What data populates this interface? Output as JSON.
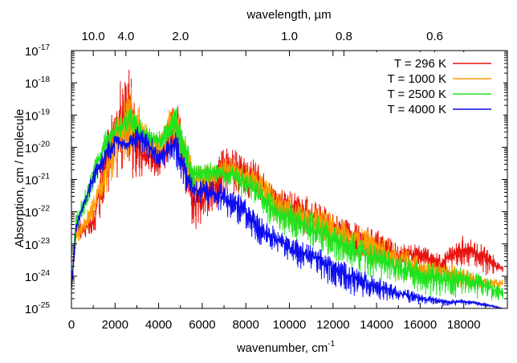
{
  "chart_data": {
    "type": "line",
    "top_axis_label": "wavelength, µm",
    "xlabel": "wavenumber, cm",
    "xlabel_sup": "-1",
    "ylabel": "Absorption, cm / molecule",
    "xlim": [
      0,
      20000
    ],
    "y_scale": "log",
    "ylim": [
      1e-25,
      1e-17
    ],
    "x_ticks": [
      0,
      2000,
      4000,
      6000,
      8000,
      10000,
      12000,
      14000,
      16000,
      18000
    ],
    "y_ticks": [
      {
        "base": "10",
        "exp": "-25",
        "value": 1e-25
      },
      {
        "base": "10",
        "exp": "-24",
        "value": 1e-24
      },
      {
        "base": "10",
        "exp": "-23",
        "value": 1e-23
      },
      {
        "base": "10",
        "exp": "-22",
        "value": 1e-22
      },
      {
        "base": "10",
        "exp": "-21",
        "value": 1e-21
      },
      {
        "base": "10",
        "exp": "-20",
        "value": 1e-20
      },
      {
        "base": "10",
        "exp": "-19",
        "value": 1e-19
      },
      {
        "base": "10",
        "exp": "-18",
        "value": 1e-18
      },
      {
        "base": "10",
        "exp": "-17",
        "value": 1e-17
      }
    ],
    "top_ticks": [
      {
        "label": "10.0",
        "wavelength_um": 10.0
      },
      {
        "label": "4.0",
        "wavelength_um": 4.0
      },
      {
        "label": "2.0",
        "wavelength_um": 2.0
      },
      {
        "label": "1.0",
        "wavelength_um": 1.0
      },
      {
        "label": "0.8",
        "wavelength_um": 0.8
      },
      {
        "label": "0.6",
        "wavelength_um": 0.6
      }
    ],
    "legend_position": "top-right",
    "grid": false,
    "series": [
      {
        "name": "T = 296 K",
        "color": "#e8130f",
        "envelope": {
          "x": [
            0,
            200,
            500,
            1000,
            1500,
            2000,
            2400,
            2600,
            2800,
            3000,
            3500,
            4000,
            4500,
            4800,
            5200,
            5600,
            6000,
            6500,
            7000,
            7500,
            8000,
            8500,
            9000,
            9500,
            10000,
            11000,
            12000,
            13000,
            14000,
            15000,
            16000,
            17000,
            18000,
            19000,
            19800
          ],
          "upper": [
            1e-24,
            1e-22,
            5e-23,
            1e-22,
            1e-20,
            5e-19,
            2e-18,
            5e-18,
            1e-18,
            1e-19,
            1e-20,
            1e-20,
            1e-19,
            5e-19,
            2e-20,
            1e-21,
            1e-21,
            5e-21,
            1e-20,
            1e-20,
            5e-21,
            5e-21,
            1e-21,
            5e-22,
            5e-22,
            3e-22,
            1e-22,
            5e-23,
            3e-23,
            1e-23,
            1e-23,
            5e-24,
            2e-23,
            1e-23,
            2e-24
          ],
          "lower": [
            1e-25,
            3e-24,
            1e-23,
            5e-24,
            5e-23,
            1e-22,
            5e-23,
            1e-22,
            5e-23,
            5e-23,
            1e-21,
            5e-22,
            1e-21,
            5e-22,
            1e-22,
            5e-24,
            1e-23,
            1e-23,
            1e-22,
            1e-22,
            1e-22,
            5e-23,
            1e-22,
            3e-23,
            1e-23,
            5e-24,
            5e-24,
            2e-24,
            1e-24,
            1e-24,
            1e-24,
            5e-25,
            1e-24,
            5e-25,
            1e-24
          ]
        }
      },
      {
        "name": "T = 1000 K",
        "color": "#ff9c00",
        "envelope": {
          "x": [
            0,
            200,
            500,
            1000,
            1500,
            2000,
            2400,
            2600,
            2800,
            3000,
            3500,
            4000,
            4500,
            4800,
            5200,
            5600,
            6000,
            6500,
            7000,
            7500,
            8000,
            8500,
            9000,
            9500,
            10000,
            11000,
            12000,
            13000,
            14000,
            15000,
            16000,
            17000,
            18000,
            19000,
            19800
          ],
          "upper": [
            1e-24,
            3e-23,
            5e-23,
            3e-22,
            3e-21,
            1e-19,
            3e-19,
            1e-18,
            1e-18,
            3e-19,
            5e-20,
            2e-20,
            2e-19,
            3e-19,
            3e-20,
            3e-21,
            3e-21,
            3e-21,
            5e-21,
            5e-21,
            3e-21,
            2e-21,
            1e-21,
            5e-22,
            3e-22,
            2e-22,
            1e-22,
            5e-23,
            3e-23,
            1e-23,
            5e-24,
            3e-24,
            2e-24,
            1e-24,
            8e-25
          ],
          "lower": [
            1e-25,
            5e-24,
            1e-23,
            3e-23,
            1e-22,
            3e-22,
            2e-22,
            3e-22,
            3e-22,
            1e-21,
            3e-21,
            2e-21,
            3e-21,
            2e-21,
            3e-22,
            5e-23,
            1e-22,
            3e-22,
            5e-22,
            3e-22,
            2e-22,
            1e-22,
            5e-23,
            1e-23,
            1e-23,
            5e-24,
            2e-24,
            1e-24,
            5e-25,
            3e-25,
            2e-25,
            3e-25,
            2e-25,
            3e-25,
            3e-25
          ]
        }
      },
      {
        "name": "T = 2500 K",
        "color": "#1ee31e",
        "envelope": {
          "x": [
            0,
            200,
            500,
            1000,
            1500,
            2000,
            2400,
            2600,
            2800,
            3000,
            3500,
            4000,
            4500,
            4800,
            5200,
            5600,
            6000,
            6500,
            7000,
            7500,
            8000,
            8500,
            9000,
            9500,
            10000,
            11000,
            12000,
            13000,
            14000,
            15000,
            16000,
            17000,
            18000,
            19000,
            19800
          ],
          "upper": [
            1e-24,
            1e-22,
            3e-22,
            3e-21,
            3e-20,
            8e-20,
            1e-19,
            2e-19,
            2e-19,
            1e-19,
            5e-20,
            3e-20,
            1e-19,
            2e-19,
            3e-20,
            3e-21,
            3e-21,
            5e-21,
            3e-21,
            3e-21,
            2e-21,
            1e-21,
            5e-22,
            2e-22,
            2e-22,
            1e-22,
            5e-23,
            2e-23,
            1e-23,
            5e-24,
            3e-24,
            2e-24,
            2e-24,
            1e-24,
            5e-25
          ],
          "lower": [
            1e-25,
            1e-23,
            3e-23,
            2e-22,
            2e-21,
            5e-21,
            1e-20,
            1e-20,
            1e-20,
            1e-20,
            5e-21,
            3e-21,
            5e-21,
            5e-21,
            5e-22,
            2e-22,
            3e-22,
            3e-22,
            3e-22,
            2e-22,
            1e-22,
            5e-23,
            2e-23,
            1e-23,
            5e-24,
            3e-24,
            1e-24,
            5e-25,
            3e-25,
            2e-25,
            1e-25,
            1e-25,
            1e-25,
            1e-25,
            1e-25
          ]
        }
      },
      {
        "name": "T = 4000 K",
        "color": "#0c0cf0",
        "envelope": {
          "x": [
            0,
            200,
            500,
            1000,
            1500,
            2000,
            2400,
            2600,
            2800,
            3000,
            3500,
            4000,
            4500,
            4800,
            5200,
            5600,
            6000,
            6500,
            7000,
            7500,
            8000,
            8500,
            9000,
            9500,
            10000,
            11000,
            12000,
            13000,
            14000,
            15000,
            16000,
            17000,
            18000,
            19000,
            19800
          ],
          "upper": [
            1e-24,
            5e-23,
            2e-22,
            2e-21,
            1e-20,
            3e-20,
            2e-20,
            2e-20,
            3e-20,
            5e-20,
            3e-20,
            1e-20,
            2e-20,
            3e-20,
            5e-21,
            1e-21,
            1e-21,
            1e-21,
            8e-22,
            5e-22,
            3e-22,
            1e-22,
            5e-23,
            3e-23,
            2e-23,
            1e-23,
            5e-24,
            2e-24,
            1e-24,
            5e-25,
            3e-25,
            2e-25,
            2e-25,
            1.5e-25,
            1e-25
          ],
          "lower": [
            1e-25,
            1e-23,
            5e-23,
            3e-22,
            1e-21,
            3e-21,
            5e-21,
            5e-21,
            5e-21,
            3e-21,
            2e-21,
            1e-21,
            2e-21,
            1e-21,
            2e-22,
            1e-22,
            1e-22,
            5e-23,
            3e-23,
            2e-23,
            1e-23,
            5e-24,
            3e-24,
            2e-24,
            1e-24,
            5e-25,
            2e-25,
            1e-25,
            1e-25,
            1e-25,
            1e-25,
            1e-25,
            1e-25,
            1e-25,
            1e-25
          ]
        }
      }
    ]
  }
}
